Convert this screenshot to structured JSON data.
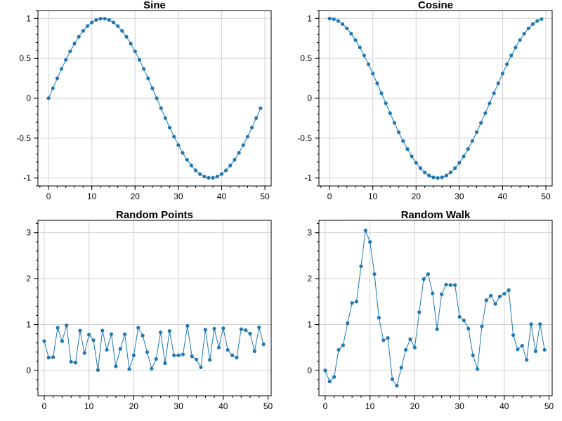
{
  "chart_data": [
    {
      "type": "line",
      "title": "Sine",
      "xlabel": "",
      "ylabel": "",
      "xlim": [
        -2.45,
        51.45
      ],
      "ylim": [
        -1.1,
        1.1
      ],
      "x_ticks": [
        0,
        10,
        20,
        30,
        40,
        50
      ],
      "y_ticks": [
        -1,
        -0.5,
        0,
        0.5,
        1
      ],
      "y_tick_labels": [
        "-1",
        "-0.5",
        "0",
        "0.5",
        "1"
      ],
      "grid": true,
      "color": "#1f77b4",
      "marker": "circle",
      "x": [
        0,
        1,
        2,
        3,
        4,
        5,
        6,
        7,
        8,
        9,
        10,
        11,
        12,
        13,
        14,
        15,
        16,
        17,
        18,
        19,
        20,
        21,
        22,
        23,
        24,
        25,
        26,
        27,
        28,
        29,
        30,
        31,
        32,
        33,
        34,
        35,
        36,
        37,
        38,
        39,
        40,
        41,
        42,
        43,
        44,
        45,
        46,
        47,
        48,
        49
      ],
      "values": [
        0,
        0.125,
        0.249,
        0.368,
        0.482,
        0.588,
        0.685,
        0.771,
        0.844,
        0.905,
        0.951,
        0.982,
        0.998,
        0.998,
        0.982,
        0.951,
        0.905,
        0.844,
        0.771,
        0.685,
        0.588,
        0.482,
        0.368,
        0.249,
        0.125,
        0,
        -0.125,
        -0.249,
        -0.368,
        -0.482,
        -0.588,
        -0.685,
        -0.771,
        -0.844,
        -0.905,
        -0.951,
        -0.982,
        -0.998,
        -0.998,
        -0.982,
        -0.951,
        -0.905,
        -0.844,
        -0.771,
        -0.685,
        -0.588,
        -0.482,
        -0.368,
        -0.249,
        -0.125
      ]
    },
    {
      "type": "line",
      "title": "Cosine",
      "xlabel": "",
      "ylabel": "",
      "xlim": [
        -2.45,
        51.45
      ],
      "ylim": [
        -1.1,
        1.1
      ],
      "x_ticks": [
        0,
        10,
        20,
        30,
        40,
        50
      ],
      "y_ticks": [
        -1,
        -0.5,
        0,
        0.5,
        1
      ],
      "y_tick_labels": [
        "-1",
        "-0.5",
        "0",
        "0.5",
        "1"
      ],
      "grid": true,
      "color": "#1f77b4",
      "marker": "circle",
      "x": [
        0,
        1,
        2,
        3,
        4,
        5,
        6,
        7,
        8,
        9,
        10,
        11,
        12,
        13,
        14,
        15,
        16,
        17,
        18,
        19,
        20,
        21,
        22,
        23,
        24,
        25,
        26,
        27,
        28,
        29,
        30,
        31,
        32,
        33,
        34,
        35,
        36,
        37,
        38,
        39,
        40,
        41,
        42,
        43,
        44,
        45,
        46,
        47,
        48,
        49
      ],
      "values": [
        1,
        0.992,
        0.969,
        0.93,
        0.876,
        0.809,
        0.729,
        0.637,
        0.536,
        0.426,
        0.309,
        0.187,
        0.063,
        -0.063,
        -0.187,
        -0.309,
        -0.426,
        -0.536,
        -0.637,
        -0.729,
        -0.809,
        -0.876,
        -0.93,
        -0.969,
        -0.992,
        -1,
        -0.992,
        -0.969,
        -0.93,
        -0.876,
        -0.809,
        -0.729,
        -0.637,
        -0.536,
        -0.426,
        -0.309,
        -0.187,
        -0.063,
        0.063,
        0.187,
        0.309,
        0.426,
        0.536,
        0.637,
        0.729,
        0.809,
        0.876,
        0.93,
        0.969,
        0.992
      ]
    },
    {
      "type": "line",
      "title": "Random Points",
      "xlabel": "",
      "ylabel": "",
      "xlim": [
        -1.4,
        50.7
      ],
      "ylim": [
        -0.55,
        3.27
      ],
      "x_ticks": [
        0,
        10,
        20,
        30,
        40,
        50
      ],
      "y_ticks": [
        0,
        1,
        2,
        3
      ],
      "y_tick_labels": [
        "0",
        "1",
        "2",
        "3"
      ],
      "grid": true,
      "color": "#1f77b4",
      "marker": "circle",
      "x": [
        0,
        1,
        2,
        3,
        4,
        5,
        6,
        7,
        8,
        9,
        10,
        11,
        12,
        13,
        14,
        15,
        16,
        17,
        18,
        19,
        20,
        21,
        22,
        23,
        24,
        25,
        26,
        27,
        28,
        29,
        30,
        31,
        32,
        33,
        34,
        35,
        36,
        37,
        38,
        39,
        40,
        41,
        42,
        43,
        44,
        45,
        46,
        47,
        48,
        49
      ],
      "values": [
        0.64,
        0.28,
        0.29,
        0.93,
        0.64,
        0.98,
        0.19,
        0.17,
        0.87,
        0.38,
        0.78,
        0.66,
        0.01,
        0.87,
        0.45,
        0.79,
        0.09,
        0.47,
        0.79,
        0.03,
        0.33,
        0.93,
        0.76,
        0.4,
        0.04,
        0.25,
        0.83,
        0.16,
        0.86,
        0.33,
        0.33,
        0.35,
        0.97,
        0.31,
        0.24,
        0.07,
        0.89,
        0.23,
        0.91,
        0.5,
        0.92,
        0.45,
        0.33,
        0.28,
        0.9,
        0.88,
        0.8,
        0.42,
        0.94,
        0.57
      ]
    },
    {
      "type": "line",
      "title": "Random Walk",
      "xlabel": "",
      "ylabel": "",
      "xlim": [
        -1.4,
        50.7
      ],
      "ylim": [
        -0.55,
        3.27
      ],
      "x_ticks": [
        0,
        10,
        20,
        30,
        40,
        50
      ],
      "y_ticks": [
        0,
        1,
        2,
        3
      ],
      "y_tick_labels": [
        "0",
        "1",
        "2",
        "3"
      ],
      "grid": true,
      "color": "#1f77b4",
      "marker": "circle",
      "x": [
        0,
        1,
        2,
        3,
        4,
        5,
        6,
        7,
        8,
        9,
        10,
        11,
        12,
        13,
        14,
        15,
        16,
        17,
        18,
        19,
        20,
        21,
        22,
        23,
        24,
        25,
        26,
        27,
        28,
        29,
        30,
        31,
        32,
        33,
        34,
        35,
        36,
        37,
        38,
        39,
        40,
        41,
        42,
        43,
        44,
        45,
        46,
        47,
        48,
        49
      ],
      "values": [
        0.0,
        -0.24,
        -0.14,
        0.45,
        0.55,
        1.03,
        1.47,
        1.5,
        2.27,
        3.05,
        2.8,
        2.1,
        1.15,
        0.66,
        0.71,
        -0.19,
        -0.33,
        0.06,
        0.45,
        0.68,
        0.5,
        1.27,
        1.99,
        2.1,
        1.68,
        0.9,
        1.66,
        1.87,
        1.86,
        1.86,
        1.17,
        1.09,
        0.91,
        0.33,
        0.03,
        0.96,
        1.53,
        1.63,
        1.45,
        1.61,
        1.67,
        1.75,
        0.77,
        0.46,
        0.54,
        0.23,
        1.01,
        0.42,
        1.01,
        0.45
      ]
    }
  ]
}
